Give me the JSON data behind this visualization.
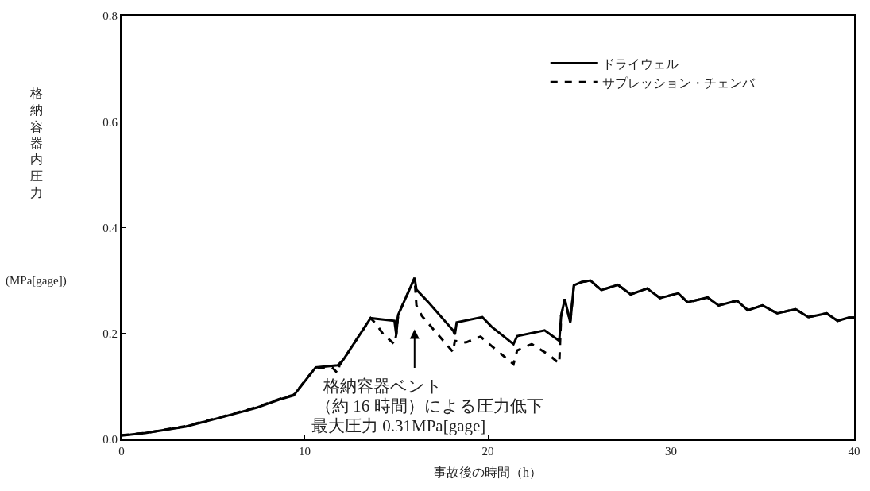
{
  "chart_data": {
    "type": "line",
    "xlabel": "事故後の時間（h）",
    "ylabel": "格納容器内圧力",
    "xlim": [
      0,
      40
    ],
    "xticks": [
      0,
      10,
      20,
      30,
      40
    ],
    "ylim": [
      0,
      0.8
    ],
    "yticks": [
      {
        "value": 0,
        "label": "0.0"
      },
      {
        "value": 0.2,
        "label": "0.2"
      },
      {
        "value": 0.4,
        "label": "0.4"
      },
      {
        "value": 0.6,
        "label": "0.6"
      },
      {
        "value": 0.8,
        "label": "0.8"
      }
    ],
    "legend": "top right",
    "marker": "none",
    "series": [
      {
        "name": "ドライウェル",
        "color": "#000000",
        "line_style": "solid",
        "x": [
          0,
          1.3,
          3.5,
          5.6,
          7.4,
          8.6,
          9.4,
          10.6,
          11.8,
          12.1,
          13.6,
          14.9,
          15.0,
          15.1,
          16.0,
          16.1,
          16.7,
          18.1,
          18.2,
          18.3,
          19.7,
          20.2,
          21.4,
          21.6,
          23.1,
          23.9,
          24.0,
          24.2,
          24.5,
          24.7,
          25.1,
          25.6,
          26.2,
          27.1,
          27.8,
          28.7,
          29.4,
          30.4,
          30.9,
          32.0,
          32.6,
          33.6,
          34.2,
          35.0,
          35.8,
          36.8,
          37.5,
          38.5,
          39.1,
          39.7,
          40
        ],
        "values": [
          0.007,
          0.012,
          0.024,
          0.043,
          0.06,
          0.075,
          0.083,
          0.136,
          0.14,
          0.15,
          0.229,
          0.224,
          0.198,
          0.235,
          0.305,
          0.283,
          0.261,
          0.206,
          0.198,
          0.221,
          0.231,
          0.213,
          0.18,
          0.195,
          0.206,
          0.186,
          0.233,
          0.265,
          0.221,
          0.291,
          0.297,
          0.3,
          0.282,
          0.292,
          0.274,
          0.285,
          0.267,
          0.276,
          0.259,
          0.268,
          0.253,
          0.262,
          0.244,
          0.253,
          0.238,
          0.246,
          0.231,
          0.238,
          0.224,
          0.23,
          0.23
        ]
      },
      {
        "name": "サプレッション・チェンバ",
        "color": "#000000",
        "line_style": "dashed",
        "x": [
          0,
          1.3,
          3.5,
          5.6,
          7.4,
          8.6,
          9.4,
          10.6,
          11.5,
          11.8,
          11.9,
          12.1,
          13.6,
          13.9,
          14.3,
          14.9,
          15.0,
          15.1,
          16.0,
          16.1,
          16.4,
          18.1,
          18.2,
          18.8,
          19.6,
          21.4,
          21.6,
          22.4,
          23.4,
          23.9,
          24.0,
          24.2,
          24.5,
          24.7,
          25.1,
          25.6,
          26.2,
          27.1,
          27.8,
          28.7,
          29.4,
          30.4,
          30.9,
          32.0,
          32.6,
          33.6,
          34.2,
          35.0,
          35.8,
          36.8,
          37.5,
          38.5,
          39.1,
          39.7,
          40
        ],
        "values": [
          0.008,
          0.012,
          0.025,
          0.044,
          0.061,
          0.076,
          0.084,
          0.136,
          0.136,
          0.125,
          0.14,
          0.15,
          0.229,
          0.218,
          0.198,
          0.18,
          0.198,
          0.235,
          0.305,
          0.253,
          0.233,
          0.165,
          0.186,
          0.183,
          0.194,
          0.142,
          0.168,
          0.18,
          0.158,
          0.143,
          0.233,
          0.265,
          0.221,
          0.291,
          0.297,
          0.3,
          0.282,
          0.292,
          0.274,
          0.285,
          0.267,
          0.276,
          0.259,
          0.268,
          0.253,
          0.262,
          0.244,
          0.253,
          0.238,
          0.246,
          0.231,
          0.238,
          0.224,
          0.23,
          0.23
        ]
      }
    ],
    "annotations": [
      "格納容器ベント",
      "（約 16 時間）による圧力低下",
      "最大圧力 0.31MPa[gage]",
      "(MPa[gage])"
    ]
  }
}
